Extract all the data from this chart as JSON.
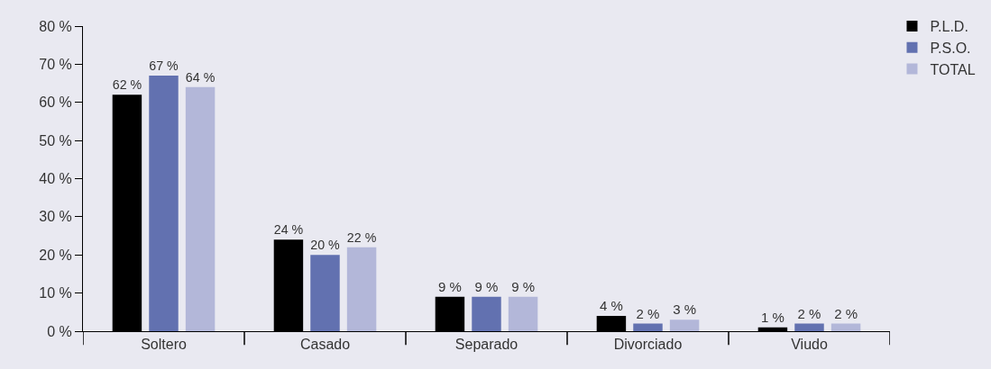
{
  "chart_data": {
    "type": "bar",
    "categories": [
      "Soltero",
      "Casado",
      "Separado",
      "Divorciado",
      "Viudo"
    ],
    "series": [
      {
        "name": "P.L.D.",
        "color": "#000000",
        "values": [
          62,
          24,
          9,
          4,
          1
        ],
        "value_labels": [
          "62 %",
          "24 %",
          "9 %",
          "4 %",
          "1 %"
        ]
      },
      {
        "name": "P.S.O.",
        "color": "#6271b0",
        "values": [
          67,
          20,
          9,
          2,
          2
        ],
        "value_labels": [
          "67 %",
          "20 %",
          "9 %",
          "2 %",
          "2 %"
        ]
      },
      {
        "name": "TOTAL",
        "color": "#b3b7d9",
        "values": [
          64,
          22,
          9,
          3,
          2
        ],
        "value_labels": [
          "64 %",
          "22 %",
          "9 %",
          "3 %",
          "2 %"
        ]
      }
    ],
    "ylim": [
      0,
      80
    ],
    "yticks": [
      {
        "value": 0,
        "label": "0 %"
      },
      {
        "value": 10,
        "label": "10 %"
      },
      {
        "value": 20,
        "label": "20 %"
      },
      {
        "value": 30,
        "label": "30 %"
      },
      {
        "value": 40,
        "label": "40 %"
      },
      {
        "value": 50,
        "label": "50 %"
      },
      {
        "value": 60,
        "label": "60 %"
      },
      {
        "value": 70,
        "label": "70 %"
      },
      {
        "value": 80,
        "label": "80 %"
      }
    ],
    "grid": false,
    "legend": "top right"
  }
}
